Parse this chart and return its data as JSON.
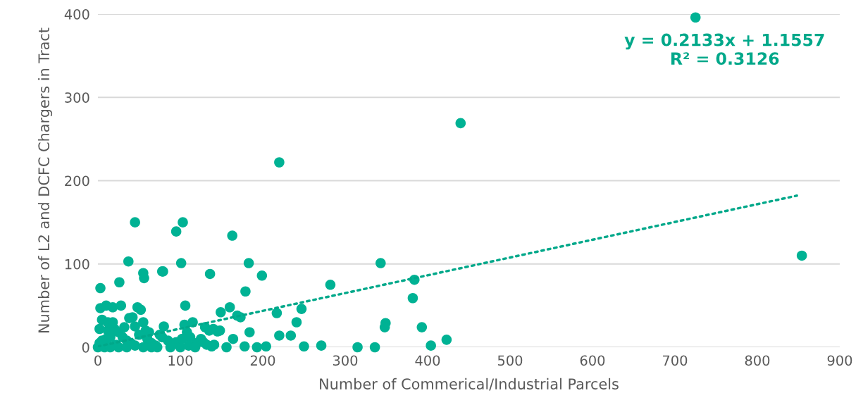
{
  "chart_data": {
    "type": "scatter",
    "xlabel": "Number of Commerical/Industrial Parcels",
    "ylabel": "Number of L2 and DCFC Chargers in Tract",
    "xlim": [
      0,
      900
    ],
    "ylim": [
      0,
      400
    ],
    "xticks": [
      0,
      100,
      200,
      300,
      400,
      500,
      600,
      700,
      800,
      900
    ],
    "yticks": [
      0,
      100,
      200,
      300,
      400
    ],
    "grid": "y",
    "marker": "circle",
    "annotations": [
      "y = 0.2133x + 1.1557\nR² = 0.3126"
    ],
    "series": [
      {
        "color": "#00b294",
        "x": [
          725,
          440,
          220,
          854,
          45,
          103,
          95,
          163,
          37,
          101,
          183,
          343,
          282,
          384,
          78,
          3,
          26,
          55,
          56,
          79,
          136,
          106,
          149,
          199,
          179,
          160,
          169,
          173,
          217,
          247,
          241,
          184,
          145,
          220,
          234,
          164,
          141,
          156,
          178,
          193,
          204,
          250,
          271,
          382,
          349,
          348,
          393,
          423,
          404,
          315,
          336,
          0,
          2,
          8,
          10,
          12,
          3,
          10,
          18,
          28,
          5,
          12,
          20,
          25,
          30,
          35,
          40,
          45,
          48,
          52,
          55,
          58,
          60,
          65,
          70,
          75,
          80,
          85,
          95,
          100,
          105,
          108,
          112,
          115,
          120,
          125,
          130,
          135,
          140,
          148,
          2,
          15,
          22,
          32,
          38,
          42,
          50,
          62,
          72,
          78,
          88,
          102,
          110,
          118,
          128,
          132,
          138,
          15,
          25,
          35,
          45,
          55,
          65,
          5,
          18
        ],
        "values": [
          396,
          269,
          222,
          110,
          150,
          150,
          139,
          134,
          103,
          101,
          101,
          101,
          75,
          81,
          91,
          71,
          78,
          89,
          83,
          91,
          88,
          50,
          42,
          86,
          67,
          48,
          38,
          36,
          41,
          46,
          30,
          18,
          19,
          14,
          14,
          10,
          3,
          0,
          1,
          0,
          1,
          1,
          2,
          59,
          29,
          24,
          24,
          9,
          2,
          0,
          0,
          0,
          5,
          0,
          10,
          20,
          47,
          50,
          48,
          50,
          33,
          30,
          22,
          18,
          12,
          8,
          5,
          25,
          48,
          45,
          30,
          20,
          10,
          5,
          2,
          15,
          25,
          8,
          6,
          0,
          27,
          18,
          12,
          30,
          5,
          10,
          24,
          20,
          22,
          20,
          22,
          0,
          3,
          24,
          35,
          36,
          15,
          18,
          0,
          12,
          0,
          10,
          2,
          0,
          6,
          3,
          1,
          12,
          0,
          0,
          2,
          0,
          0,
          8,
          30
        ]
      },
      {
        "type": "line",
        "color": "#00a88a",
        "line_style": "dotted",
        "marker": "none",
        "x": [
          0,
          848
        ],
        "values": [
          1,
          182
        ]
      }
    ]
  }
}
